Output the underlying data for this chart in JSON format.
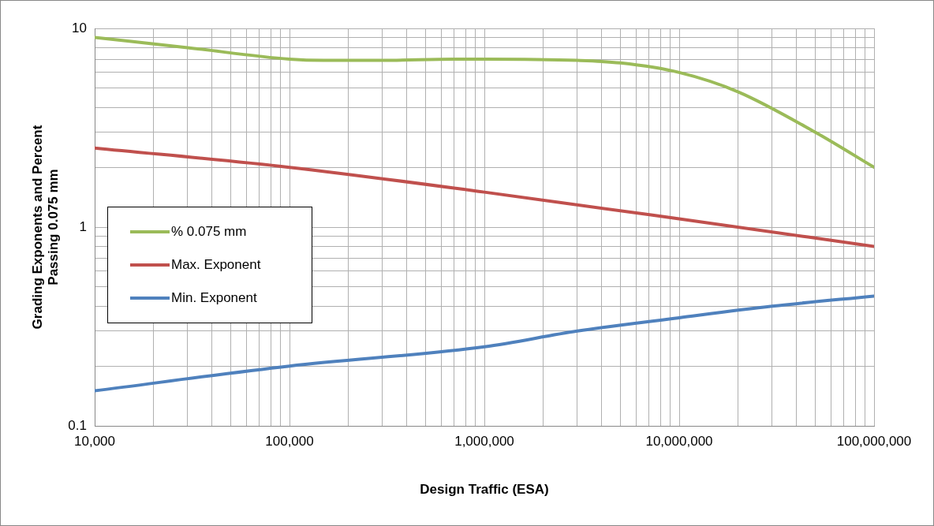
{
  "chart_data": {
    "type": "line",
    "xlabel": "Design Traffic (ESA)",
    "ylabel": "Grading Exponents and Percent Passing 0.075 mm",
    "log": "xy",
    "grid": true,
    "legend": "center left",
    "xlim": [
      10000,
      100000000
    ],
    "ylim": [
      0.1,
      10
    ],
    "xticks": [
      {
        "value": 10000,
        "label": "10,000"
      },
      {
        "value": 20000,
        "label": null
      },
      {
        "value": 30000,
        "label": null
      },
      {
        "value": 40000,
        "label": null
      },
      {
        "value": 50000,
        "label": null
      },
      {
        "value": 60000,
        "label": null
      },
      {
        "value": 70000,
        "label": null
      },
      {
        "value": 80000,
        "label": null
      },
      {
        "value": 90000,
        "label": null
      },
      {
        "value": 100000,
        "label": "100,000"
      },
      {
        "value": 200000,
        "label": null
      },
      {
        "value": 300000,
        "label": null
      },
      {
        "value": 400000,
        "label": null
      },
      {
        "value": 500000,
        "label": null
      },
      {
        "value": 600000,
        "label": null
      },
      {
        "value": 700000,
        "label": null
      },
      {
        "value": 800000,
        "label": null
      },
      {
        "value": 900000,
        "label": null
      },
      {
        "value": 1000000,
        "label": "1,000,000"
      },
      {
        "value": 2000000,
        "label": null
      },
      {
        "value": 3000000,
        "label": null
      },
      {
        "value": 4000000,
        "label": null
      },
      {
        "value": 5000000,
        "label": null
      },
      {
        "value": 6000000,
        "label": null
      },
      {
        "value": 7000000,
        "label": null
      },
      {
        "value": 8000000,
        "label": null
      },
      {
        "value": 9000000,
        "label": null
      },
      {
        "value": 10000000,
        "label": "10,000,000"
      },
      {
        "value": 20000000,
        "label": null
      },
      {
        "value": 30000000,
        "label": null
      },
      {
        "value": 40000000,
        "label": null
      },
      {
        "value": 50000000,
        "label": null
      },
      {
        "value": 60000000,
        "label": null
      },
      {
        "value": 70000000,
        "label": null
      },
      {
        "value": 80000000,
        "label": null
      },
      {
        "value": 90000000,
        "label": null
      },
      {
        "value": 100000000,
        "label": "100,000,000"
      }
    ],
    "yticks": [
      0.1,
      {
        "value": 0.2,
        "label": null
      },
      {
        "value": 0.3,
        "label": null
      },
      {
        "value": 0.4,
        "label": null
      },
      {
        "value": 0.5,
        "label": null
      },
      {
        "value": 0.6,
        "label": null
      },
      {
        "value": 0.7,
        "label": null
      },
      {
        "value": 0.8,
        "label": null
      },
      {
        "value": 0.9,
        "label": null
      },
      1,
      {
        "value": 2,
        "label": null
      },
      {
        "value": 3,
        "label": null
      },
      {
        "value": 4,
        "label": null
      },
      {
        "value": 5,
        "label": null
      },
      {
        "value": 6,
        "label": null
      },
      {
        "value": 7,
        "label": null
      },
      {
        "value": 8,
        "label": null
      },
      {
        "value": 9,
        "label": null
      },
      10
    ],
    "series": [
      {
        "name": "% 0.075 mm",
        "color": "#9bbb59",
        "x": [
          10000,
          30000,
          100000,
          150000,
          300000,
          700000,
          1000000,
          3000000,
          5000000,
          10000000,
          20000000,
          50000000,
          100000000
        ],
        "values": [
          9,
          8,
          7,
          6.9,
          6.9,
          7,
          7,
          6.9,
          6.7,
          6,
          4.8,
          3,
          2
        ]
      },
      {
        "name": "Max. Exponent",
        "color": "#c0504d",
        "x": [
          10000,
          100000,
          1000000,
          10000000,
          100000000
        ],
        "values": [
          2.5,
          2,
          1.5,
          1.1,
          0.8
        ]
      },
      {
        "name": "Min. Exponent",
        "color": "#4f81bd",
        "x": [
          10000,
          100000,
          1000000,
          3000000,
          10000000,
          30000000,
          100000000
        ],
        "values": [
          0.15,
          0.2,
          0.25,
          0.3,
          0.35,
          0.4,
          0.45
        ]
      }
    ]
  }
}
